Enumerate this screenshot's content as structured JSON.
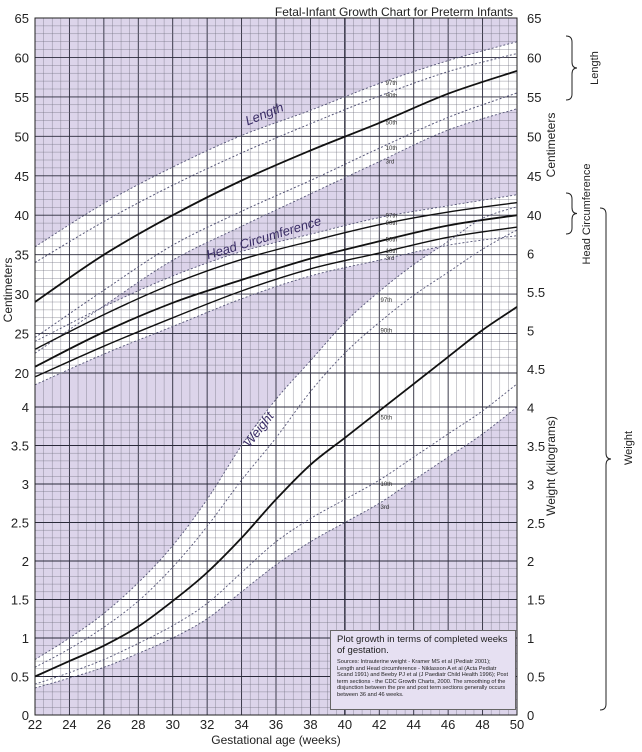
{
  "chart_data": {
    "type": "line",
    "title": "Fetal-Infant Growth Chart for Preterm Infants",
    "xlabel": "Gestational age (weeks)",
    "x_ticks": [
      22,
      24,
      26,
      28,
      30,
      32,
      34,
      36,
      38,
      40,
      42,
      44,
      46,
      48,
      50
    ],
    "xlim": [
      22,
      50
    ],
    "left_ticks": [
      "65",
      "60",
      "55",
      "50",
      "45",
      "40",
      "35",
      "30",
      "25",
      "20",
      "4",
      "3.5",
      "3",
      "2.5",
      "2",
      "1.5",
      "1",
      "0.5",
      "0"
    ],
    "right_ticks": [
      "65",
      "60",
      "55",
      "50",
      "45",
      "40",
      "6",
      "5.5",
      "5",
      "4.5",
      "4",
      "3.5",
      "3",
      "2.5",
      "2",
      "1.5",
      "1",
      "0.5",
      "0"
    ],
    "left_axis_title": "Centimeters",
    "right_axis_titles": [
      "Centimeters",
      "Weight (kilograms)"
    ],
    "side_labels": [
      "Length",
      "Head Circumference",
      "Weight"
    ],
    "curve_labels": [
      "Length",
      "Head Circumference",
      "Weight"
    ],
    "percentile_labels": [
      "97th",
      "90th",
      "50th",
      "10th",
      "3rd"
    ],
    "groups": [
      {
        "name": "Length",
        "unit": "cm",
        "series": [
          {
            "percentile": "97th",
            "x": [
              22,
              26,
              30,
              34,
              38,
              42,
              46,
              50
            ],
            "y": [
              36,
              41.5,
              46.1,
              50.1,
              53.3,
              56.7,
              59.6,
              62
            ]
          },
          {
            "percentile": "90th",
            "x": [
              22,
              26,
              30,
              34,
              38,
              42,
              46,
              50
            ],
            "y": [
              34,
              39.2,
              43.8,
              47.9,
              51.6,
              55.1,
              58.2,
              60.5
            ]
          },
          {
            "percentile": "50th",
            "x": [
              22,
              26,
              30,
              34,
              38,
              42,
              46,
              50
            ],
            "y": [
              29,
              35,
              40,
              44.4,
              48.2,
              51.7,
              55.4,
              58.3
            ]
          },
          {
            "percentile": "10th",
            "x": [
              22,
              26,
              30,
              34,
              38,
              42,
              46,
              50
            ],
            "y": [
              24.5,
              30.5,
              36.2,
              40.5,
              44.4,
              48.5,
              52.4,
              55.5
            ]
          },
          {
            "percentile": "3rd",
            "x": [
              22,
              26,
              30,
              34,
              38,
              42,
              46,
              50
            ],
            "y": [
              22.5,
              28.5,
              34.3,
              38.6,
              42.7,
              46.8,
              50.8,
              53.5
            ]
          }
        ]
      },
      {
        "name": "Head Circumference",
        "unit": "cm",
        "series": [
          {
            "percentile": "97th",
            "x": [
              22,
              26,
              30,
              34,
              38,
              42,
              46,
              50
            ],
            "y": [
              24,
              28.4,
              32.3,
              35.4,
              37.6,
              39.7,
              41.2,
              42.6
            ]
          },
          {
            "percentile": "90th",
            "x": [
              22,
              26,
              30,
              34,
              38,
              42,
              46,
              50
            ],
            "y": [
              23,
              27.4,
              31.3,
              34.4,
              36.7,
              38.8,
              40.4,
              41.6
            ]
          },
          {
            "percentile": "50th",
            "x": [
              22,
              26,
              30,
              34,
              38,
              42,
              46,
              50
            ],
            "y": [
              20.8,
              25.2,
              28.9,
              31.8,
              34.5,
              36.7,
              38.7,
              40
            ]
          },
          {
            "percentile": "10th",
            "x": [
              22,
              26,
              30,
              34,
              38,
              42,
              46,
              50
            ],
            "y": [
              19.5,
              23.4,
              27,
              30.4,
              33.2,
              35.2,
              37.2,
              38.5
            ]
          },
          {
            "percentile": "3rd",
            "x": [
              22,
              26,
              30,
              34,
              38,
              42,
              46,
              50
            ],
            "y": [
              18.5,
              22.4,
              25.9,
              29.4,
              32.3,
              34.3,
              36.2,
              37.4
            ]
          }
        ]
      },
      {
        "name": "Weight",
        "unit": "kg",
        "series": [
          {
            "percentile": "97th",
            "x": [
              22,
              24,
              26,
              28,
              30,
              32,
              34,
              36,
              38,
              40,
              42,
              44,
              46,
              48,
              50
            ],
            "y": [
              0.72,
              1.0,
              1.32,
              1.72,
              2.2,
              2.8,
              3.5,
              4.1,
              4.6,
              5.1,
              5.5,
              5.85,
              6.15,
              6.45,
              6.6
            ]
          },
          {
            "percentile": "90th",
            "x": [
              22,
              24,
              26,
              28,
              30,
              32,
              34,
              36,
              38,
              40,
              42,
              44,
              46,
              48,
              50
            ],
            "y": [
              0.62,
              0.86,
              1.14,
              1.48,
              1.92,
              2.45,
              3.05,
              3.6,
              4.2,
              4.7,
              5.1,
              5.45,
              5.75,
              6.05,
              6.3
            ]
          },
          {
            "percentile": "50th",
            "x": [
              22,
              24,
              26,
              28,
              30,
              32,
              34,
              36,
              38,
              40,
              42,
              44,
              46,
              48,
              50
            ],
            "y": [
              0.5,
              0.7,
              0.9,
              1.15,
              1.48,
              1.85,
              2.3,
              2.8,
              3.25,
              3.6,
              3.95,
              4.3,
              4.65,
              5.0,
              5.3
            ]
          },
          {
            "percentile": "10th",
            "x": [
              22,
              24,
              26,
              28,
              30,
              32,
              34,
              36,
              38,
              40,
              42,
              44,
              46,
              48,
              50
            ],
            "y": [
              0.4,
              0.55,
              0.72,
              0.93,
              1.16,
              1.45,
              1.85,
              2.25,
              2.55,
              2.8,
              3.05,
              3.35,
              3.65,
              3.95,
              4.3
            ]
          },
          {
            "percentile": "3rd",
            "x": [
              22,
              24,
              26,
              28,
              30,
              32,
              34,
              36,
              38,
              40,
              42,
              44,
              46,
              48,
              50
            ],
            "y": [
              0.35,
              0.48,
              0.62,
              0.8,
              1.0,
              1.25,
              1.6,
              1.95,
              2.25,
              2.5,
              2.75,
              3.05,
              3.35,
              3.65,
              4.0
            ]
          }
        ]
      }
    ],
    "legend": "none"
  },
  "note": {
    "title": "Plot growth in terms of completed weeks of gestation.",
    "sources": "Sources: Intrauterine weight - Kramer MS et al (Pediatr 2001); Length and Head circumference - Niklasson A et al (Acta Pediatr Scand 1991) and Beeby PJ et al (J Paediatr Child Health 1996); Post term sections - the CDC Growth Charts, 2000. The smoothing of the disjunction between the pre and post term sections generally occurs between 36 and 46 weeks."
  },
  "colors": {
    "background_fill": "#dcd4ea",
    "grid_line": "#6a6a78",
    "major_grid": "#2a2a3a",
    "curve_50th": "#111111",
    "curve_dotted": "#555577",
    "band_fill": "#ffffff"
  }
}
